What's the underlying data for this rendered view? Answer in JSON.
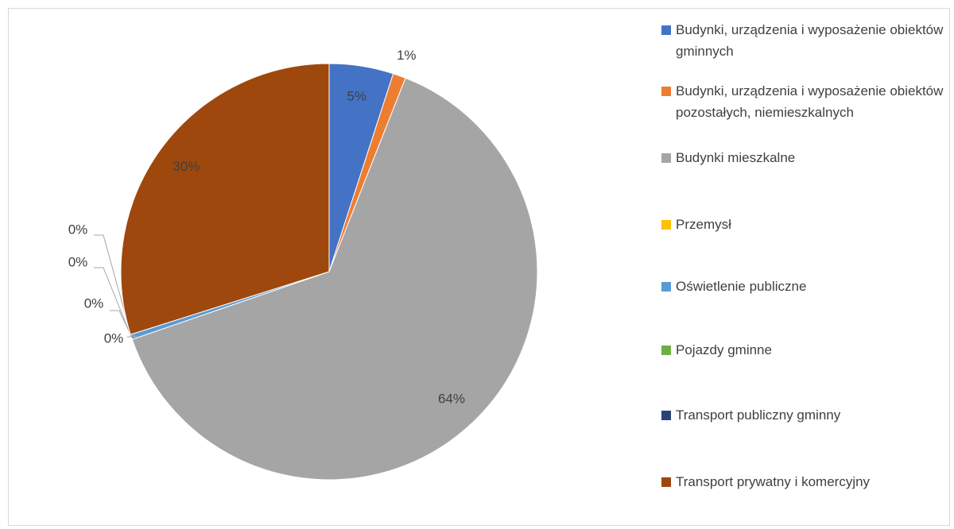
{
  "chart_data": {
    "type": "pie",
    "categories": [
      "Budynki, urządzenia i wyposażenie obiektów gminnych",
      "Budynki, urządzenia i wyposażenie obiektów pozostałych, niemieszkalnych",
      "Budynki mieszkalne",
      "Przemysł",
      "Oświetlenie publiczne",
      "Pojazdy gminne",
      "Transport publiczny gminny",
      "Transport prywatny i komercyjny"
    ],
    "values": [
      5,
      1,
      64,
      0,
      0.4,
      0,
      0,
      30
    ],
    "value_labels": [
      "5%",
      "1%",
      "64%",
      "0%",
      "0%",
      "0%",
      "0%",
      "30%"
    ],
    "colors": [
      "#4472c4",
      "#ed7d31",
      "#a5a5a5",
      "#ffc000",
      "#5b9bd5",
      "#70ad47",
      "#264478",
      "#9e480e"
    ],
    "legend": "right"
  }
}
